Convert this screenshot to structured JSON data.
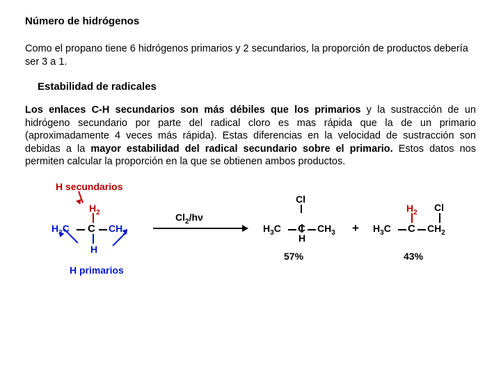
{
  "heading1": "Número de hidrógenos",
  "para1": "Como el propano tiene 6 hidrógenos primarios y 2 secundarios, la proporción de productos debería ser 3 a 1.",
  "heading2": "Estabilidad de radicales",
  "para2_seg1": "Los enlaces C-H secundarios son más débiles que los primarios",
  "para2_seg2": " y la sustracción de un hidrógeno secundario por parte del radical cloro es mas rápida que la de un primario (aproximadamente 4 veces más rápida). Estas diferencias en la velocidad de sustracción son debidas a la ",
  "para2_seg3": "mayor estabilidad del radical secundario sobre el primario.",
  "para2_seg4": " Estos datos nos permiten calcular la proporción en la que se obtienen ambos productos.",
  "diagram": {
    "label_h_secondary": "H secundarios",
    "label_h_primary": "H primarios",
    "h2": "H",
    "h2_sub": "2",
    "left_c1": "H",
    "left_c1_sub": "3",
    "left_c1_c": "C",
    "left_c2": "C",
    "left_c3_c": "CH",
    "left_c3_sub": "3",
    "left_h_bottom": "H",
    "reagent": "Cl",
    "reagent_sub": "2",
    "reagent_cond": "/hν",
    "p1_cl": "Cl",
    "p1_c1_h": "H",
    "p1_c1_sub": "3",
    "p1_c1_c": "C",
    "p1_c2": "C",
    "p1_h": "H",
    "p1_c3_c": "CH",
    "p1_c3_sub": "3",
    "p1_percent": "57%",
    "plus": "+",
    "p2_c1_h": "H",
    "p2_c1_sub": "3",
    "p2_c1_c": "C",
    "p2_c2": "C",
    "p2_h2": "H",
    "p2_h2_sub": "2",
    "p2_c3": "CH",
    "p2_c3_sub": "2",
    "p2_cl": "Cl",
    "p2_percent": "43%",
    "colors": {
      "red": "#bb0000",
      "blue": "#0018c9",
      "black": "#000000",
      "background": "#ffffff"
    }
  }
}
